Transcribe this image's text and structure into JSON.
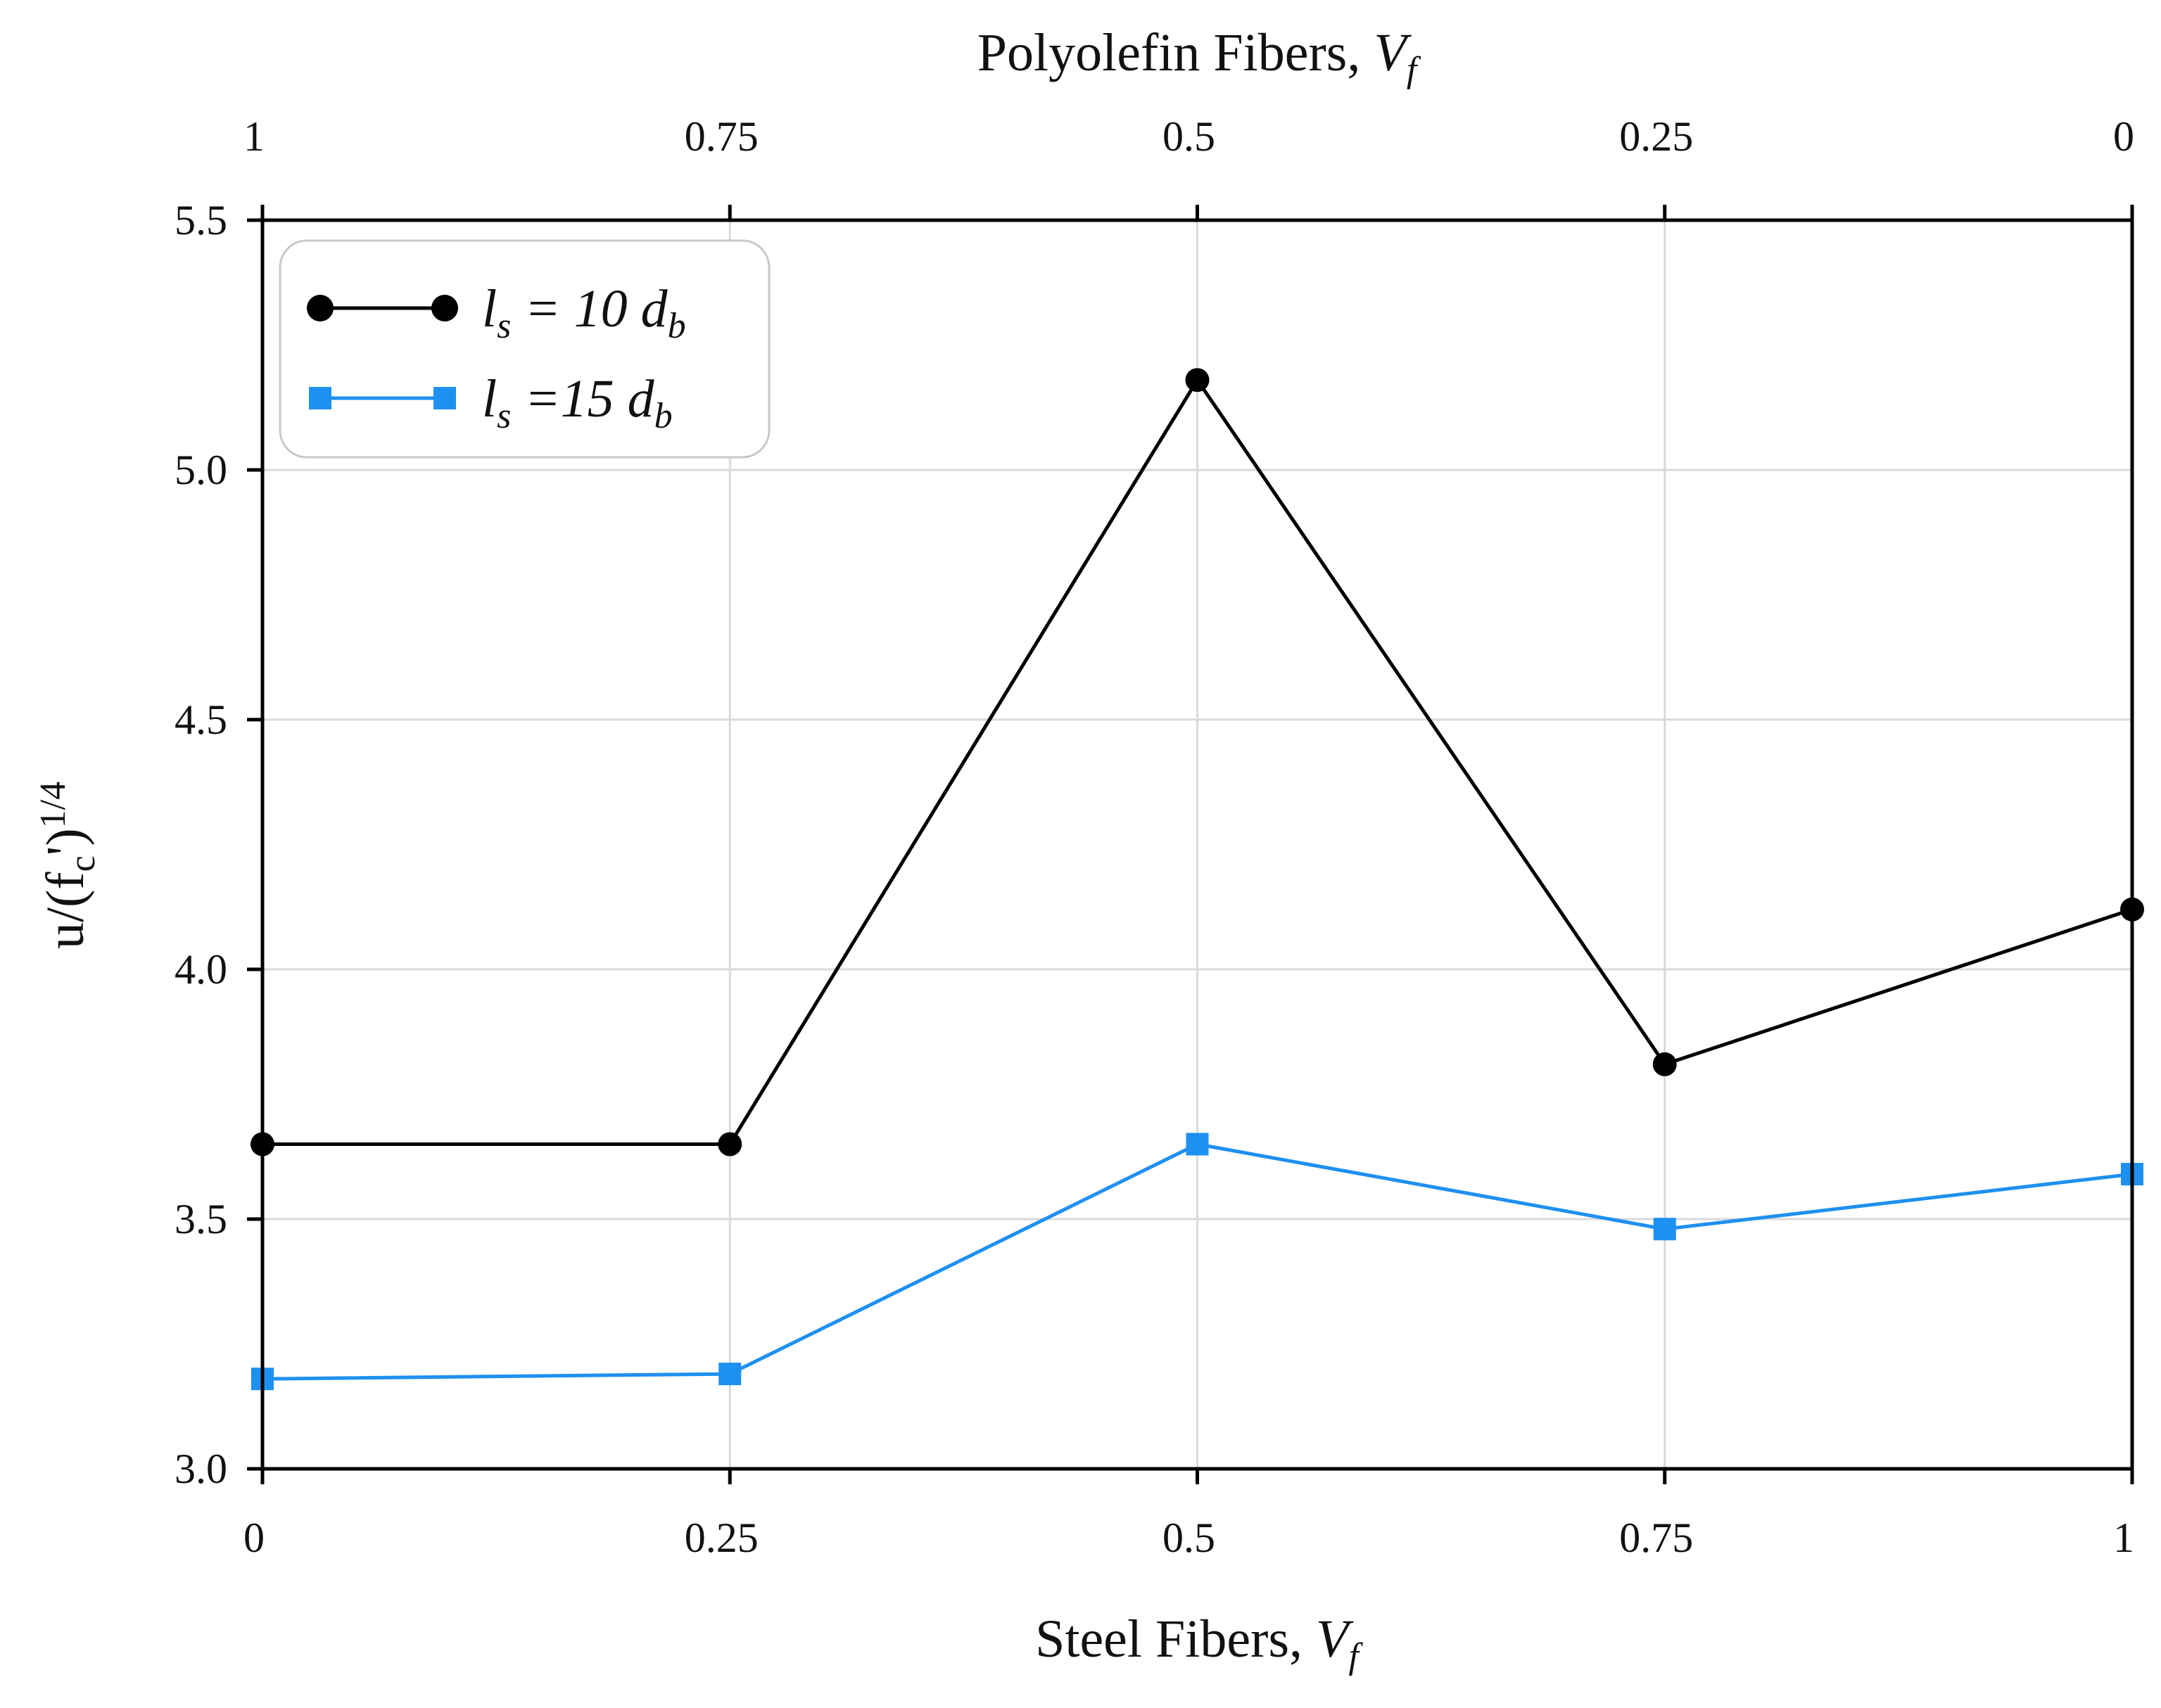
{
  "chart_data": {
    "type": "line",
    "title": "",
    "xlabel": {
      "main": "Steel Fibers, ",
      "var": "V",
      "sub": "f"
    },
    "x2label": {
      "main": "Polyolefin Fibers, ",
      "var": "V",
      "sub": "f"
    },
    "ylabel": {
      "main": "u/(f",
      "sub": "c",
      "tail": "')",
      "sup": "1/4"
    },
    "x": [
      0,
      0.25,
      0.5,
      0.75,
      1
    ],
    "xlim": [
      0,
      1
    ],
    "ylim": [
      3.0,
      5.5
    ],
    "x_tick_labels": [
      "0",
      "0.25",
      "0.5",
      "0.75",
      "1"
    ],
    "x2_tick_labels": [
      "1",
      "0.75",
      "0.5",
      "0.25",
      "0"
    ],
    "y_ticks": [
      3.0,
      3.5,
      4.0,
      4.5,
      5.0,
      5.5
    ],
    "y_tick_labels": [
      "3.0",
      "3.5",
      "4.0",
      "4.5",
      "5.0",
      "5.5"
    ],
    "grid": true,
    "legend_position": "top-left",
    "series": [
      {
        "name": "ls = 10 db",
        "legend": {
          "l": "l",
          "ls_sub": "s",
          "mid": " = 10 ",
          "d": "d",
          "db_sub": "b"
        },
        "color": "#000000",
        "marker": "circle",
        "values": [
          3.65,
          3.65,
          5.18,
          3.81,
          4.12
        ]
      },
      {
        "name": "ls =15 db",
        "legend": {
          "l": "l",
          "ls_sub": "s",
          "mid": " =15 ",
          "d": "d",
          "db_sub": "b"
        },
        "color": "#1E90F0",
        "marker": "square",
        "values": [
          3.18,
          3.19,
          3.65,
          3.48,
          3.59
        ]
      }
    ]
  }
}
